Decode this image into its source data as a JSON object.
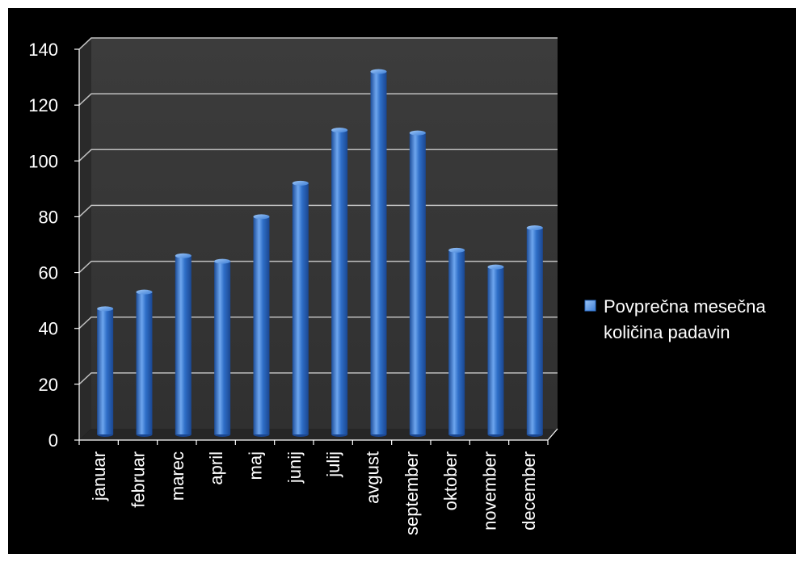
{
  "chart_data": {
    "type": "bar",
    "title": "",
    "xlabel": "",
    "ylabel": "",
    "ylim": [
      0,
      140
    ],
    "yticks": [
      0,
      20,
      40,
      60,
      80,
      100,
      120,
      140
    ],
    "grid": true,
    "legend_position": "right",
    "categories": [
      "januar",
      "februar",
      "marec",
      "april",
      "maj",
      "junij",
      "julij",
      "avgust",
      "september",
      "oktober",
      "november",
      "december"
    ],
    "series": [
      {
        "name": "Povprečna mesečna količina padavin",
        "values": [
          45,
          51,
          64,
          62,
          78,
          90,
          109,
          130,
          108,
          66,
          60,
          74
        ],
        "color": "#2f6fc8"
      }
    ],
    "legend_lines": [
      "Povprečna mesečna",
      "količina padavin"
    ]
  },
  "colors": {
    "background": "#000000",
    "plot_wall": "#3a3a3a",
    "grid": "#bfbfbf",
    "bar_main": "#2f6fc8",
    "bar_light": "#6ea6ee",
    "bar_dark": "#1d4d99",
    "text": "#ffffff"
  }
}
